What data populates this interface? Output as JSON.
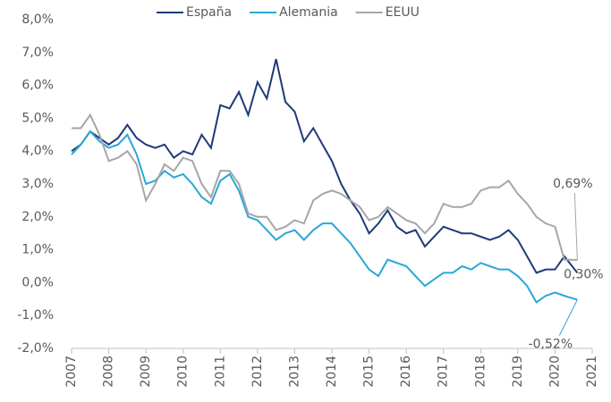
{
  "chart_data": {
    "type": "line",
    "x": [
      2007,
      2007.25,
      2007.5,
      2007.75,
      2008,
      2008.25,
      2008.5,
      2008.75,
      2009,
      2009.25,
      2009.5,
      2009.75,
      2010,
      2010.25,
      2010.5,
      2010.75,
      2011,
      2011.25,
      2011.5,
      2011.75,
      2012,
      2012.25,
      2012.5,
      2012.75,
      2013,
      2013.25,
      2013.5,
      2013.75,
      2014,
      2014.25,
      2014.5,
      2014.75,
      2015,
      2015.25,
      2015.5,
      2015.75,
      2016,
      2016.25,
      2016.5,
      2016.75,
      2017,
      2017.25,
      2017.5,
      2017.75,
      2018,
      2018.25,
      2018.5,
      2018.75,
      2019,
      2019.25,
      2019.5,
      2019.75,
      2020,
      2020.25,
      2020.6
    ],
    "series": [
      {
        "name": "España",
        "color": "#1f3a7a",
        "values": [
          4.0,
          4.2,
          4.6,
          4.4,
          4.2,
          4.4,
          4.8,
          4.4,
          4.2,
          4.1,
          4.2,
          3.8,
          4.0,
          3.9,
          4.5,
          4.1,
          5.4,
          5.3,
          5.8,
          5.1,
          6.1,
          5.6,
          6.8,
          5.5,
          5.2,
          4.3,
          4.7,
          4.2,
          3.7,
          3.0,
          2.5,
          2.1,
          1.5,
          1.8,
          2.2,
          1.7,
          1.5,
          1.6,
          1.1,
          1.4,
          1.7,
          1.6,
          1.5,
          1.5,
          1.4,
          1.3,
          1.4,
          1.6,
          1.3,
          0.8,
          0.3,
          0.4,
          0.4,
          0.8,
          0.3
        ]
      },
      {
        "name": "Alemania",
        "color": "#29a7d8",
        "values": [
          3.9,
          4.2,
          4.6,
          4.3,
          4.1,
          4.2,
          4.5,
          3.9,
          3.0,
          3.1,
          3.4,
          3.2,
          3.3,
          3.0,
          2.6,
          2.4,
          3.1,
          3.3,
          2.8,
          2.0,
          1.9,
          1.6,
          1.3,
          1.5,
          1.6,
          1.3,
          1.6,
          1.8,
          1.8,
          1.5,
          1.2,
          0.8,
          0.4,
          0.2,
          0.7,
          0.6,
          0.5,
          0.2,
          -0.1,
          0.1,
          0.3,
          0.3,
          0.5,
          0.4,
          0.6,
          0.5,
          0.4,
          0.4,
          0.2,
          -0.1,
          -0.6,
          -0.4,
          -0.3,
          -0.4,
          -0.52
        ]
      },
      {
        "name": "EEUU",
        "color": "#a6a6a6",
        "values": [
          4.7,
          4.7,
          5.1,
          4.5,
          3.7,
          3.8,
          4.0,
          3.6,
          2.5,
          3.0,
          3.6,
          3.4,
          3.8,
          3.7,
          3.0,
          2.6,
          3.4,
          3.4,
          3.0,
          2.1,
          2.0,
          2.0,
          1.6,
          1.7,
          1.9,
          1.8,
          2.5,
          2.7,
          2.8,
          2.7,
          2.5,
          2.3,
          1.9,
          2.0,
          2.3,
          2.1,
          1.9,
          1.8,
          1.5,
          1.8,
          2.4,
          2.3,
          2.3,
          2.4,
          2.8,
          2.9,
          2.9,
          3.1,
          2.7,
          2.4,
          2.0,
          1.8,
          1.7,
          0.7,
          0.69
        ]
      }
    ],
    "annotations": [
      {
        "text": "0,69%",
        "x": 2020.6,
        "y": 0.69
      },
      {
        "text": "0,30%",
        "x": 2020.6,
        "y": 0.3
      },
      {
        "text": "-0,52%",
        "x": 2020.6,
        "y": -0.52
      }
    ],
    "xlim": [
      2007,
      2021
    ],
    "xticks": [
      2007,
      2008,
      2009,
      2010,
      2011,
      2012,
      2013,
      2014,
      2015,
      2016,
      2017,
      2018,
      2019,
      2020,
      2021
    ],
    "ylim": [
      -2,
      8
    ],
    "yticks": [
      {
        "value": -2,
        "label": "-2,0%"
      },
      {
        "value": -1,
        "label": "-1,0%"
      },
      {
        "value": 0,
        "label": "0,0%"
      },
      {
        "value": 1,
        "label": "1,0%"
      },
      {
        "value": 2,
        "label": "2,0%"
      },
      {
        "value": 3,
        "label": "3,0%"
      },
      {
        "value": 4,
        "label": "4,0%"
      },
      {
        "value": 5,
        "label": "5,0%"
      },
      {
        "value": 6,
        "label": "6,0%"
      },
      {
        "value": 7,
        "label": "7,0%"
      },
      {
        "value": 8,
        "label": "8,0%"
      }
    ],
    "legend": "top"
  }
}
